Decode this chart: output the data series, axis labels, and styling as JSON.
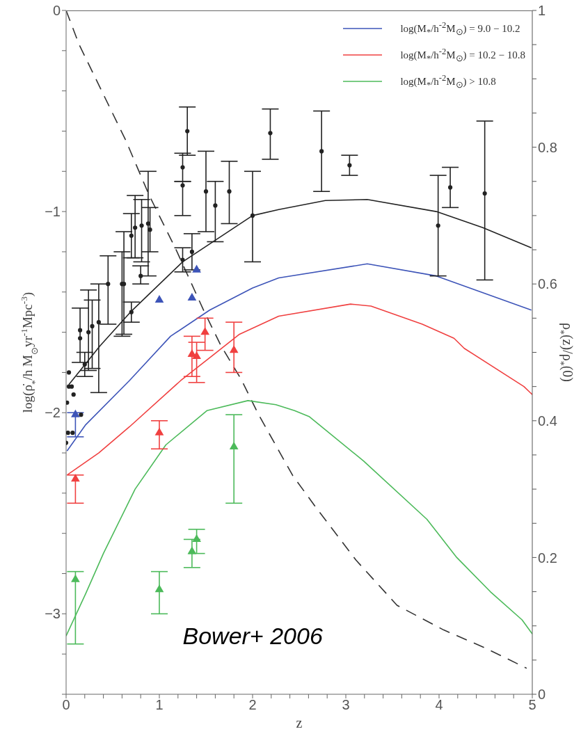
{
  "chart_data": {
    "type": "line",
    "xlabel": "z",
    "ylabel": "log(ρ̇$_{*}$/h M$_{⊙}$yr$^{-1}$Mpc$^{-3}$)",
    "y2label": "ρ$_{*}$(z)/ρ$_{*}$(0)",
    "annotations": [
      "Bower+ 2006"
    ],
    "xlim": [
      0,
      5
    ],
    "xticks": [
      0,
      {
        "value": 0.2,
        "label": null
      },
      {
        "value": 0.4,
        "label": null
      },
      {
        "value": 0.6,
        "label": null
      },
      {
        "value": 0.8,
        "label": null
      },
      1,
      {
        "value": 1.2,
        "label": null
      },
      {
        "value": 1.4,
        "label": null
      },
      {
        "value": 1.6,
        "label": null
      },
      {
        "value": 1.8,
        "label": null
      },
      2,
      {
        "value": 2.2,
        "label": null
      },
      {
        "value": 2.4,
        "label": null
      },
      {
        "value": 2.6,
        "label": null
      },
      {
        "value": 2.8,
        "label": null
      },
      3,
      {
        "value": 3.2,
        "label": null
      },
      {
        "value": 3.4,
        "label": null
      },
      {
        "value": 3.6,
        "label": null
      },
      {
        "value": 3.8,
        "label": null
      },
      4,
      {
        "value": 4.2,
        "label": null
      },
      {
        "value": 4.4,
        "label": null
      },
      {
        "value": 4.6,
        "label": null
      },
      {
        "value": 4.8,
        "label": null
      },
      5
    ],
    "ylim": [
      -3.4,
      0
    ],
    "yticks": [
      {
        "value": -3.4,
        "label": null
      },
      {
        "value": -3.2,
        "label": null
      },
      {
        "value": -3,
        "label": "−3"
      },
      {
        "value": -2.8,
        "label": null
      },
      {
        "value": -2.6,
        "label": null
      },
      {
        "value": -2.4,
        "label": null
      },
      {
        "value": -2.2,
        "label": null
      },
      {
        "value": -2,
        "label": "−2"
      },
      {
        "value": -1.8,
        "label": null
      },
      {
        "value": -1.6,
        "label": null
      },
      {
        "value": -1.4,
        "label": null
      },
      {
        "value": -1.2,
        "label": null
      },
      {
        "value": -1,
        "label": "−1"
      },
      {
        "value": -0.8,
        "label": null
      },
      {
        "value": -0.6,
        "label": null
      },
      {
        "value": -0.4,
        "label": null
      },
      {
        "value": -0.2,
        "label": null
      },
      0
    ],
    "y2lim": [
      0,
      1
    ],
    "y2ticks": [
      0,
      {
        "value": 0.05,
        "label": null
      },
      {
        "value": 0.1,
        "label": null
      },
      {
        "value": 0.15,
        "label": null
      },
      0.2,
      {
        "value": 0.25,
        "label": null
      },
      {
        "value": 0.3,
        "label": null
      },
      {
        "value": 0.35,
        "label": null
      },
      0.4,
      {
        "value": 0.45,
        "label": null
      },
      {
        "value": 0.5,
        "label": null
      },
      {
        "value": 0.55,
        "label": null
      },
      0.6,
      {
        "value": 0.65,
        "label": null
      },
      {
        "value": 0.7,
        "label": null
      },
      {
        "value": 0.75,
        "label": null
      },
      0.8,
      {
        "value": 0.85,
        "label": null
      },
      {
        "value": 0.9,
        "label": null
      },
      {
        "value": 0.95,
        "label": null
      },
      1
    ],
    "legend": "top right",
    "series": [
      {
        "color": "#333333",
        "line_style": "dashed",
        "axis": "y2",
        "x": [
          0,
          0.14,
          0.39,
          0.64,
          0.89,
          1.18,
          1.48,
          1.66,
          1.88,
          2.06,
          2.43,
          2.67,
          3.11,
          3.55,
          4.05,
          4.49,
          4.94
        ],
        "values": [
          1,
          0.95,
          0.88,
          0.81,
          0.73,
          0.65,
          0.56,
          0.51,
          0.46,
          0.41,
          0.32,
          0.275,
          0.196,
          0.13,
          0.094,
          0.068,
          0.038
        ]
      },
      {
        "color": "#222222",
        "x": [
          0.03,
          0.36,
          0.69,
          1.25,
          2.0,
          2.28,
          2.78,
          3.23,
          3.97,
          4.47,
          4.99
        ],
        "values": [
          -1.86,
          -1.67,
          -1.5,
          -1.25,
          -1.02,
          -0.99,
          -0.945,
          -0.94,
          -1.0,
          -1.08,
          -1.18
        ]
      },
      {
        "name": "log(M$_{*}$/h$^{-2}$M$_{⊙}$) = 9.0 − 10.2",
        "color": "#3d54b8",
        "x": [
          0.01,
          0.21,
          0.68,
          1.12,
          1.54,
          2.0,
          2.28,
          3.23,
          3.97,
          4.99
        ],
        "values": [
          -2.19,
          -2.06,
          -1.84,
          -1.62,
          -1.49,
          -1.38,
          -1.33,
          -1.26,
          -1.32,
          -1.49
        ]
      },
      {
        "name": "log(M$_{*}$/h$^{-2}$M$_{⊙}$) = 10.2 − 10.8",
        "color": "#f04040",
        "x": [
          0.01,
          0.35,
          0.68,
          1.23,
          1.86,
          2.28,
          3.05,
          3.27,
          3.82,
          4.16,
          4.27,
          4.91,
          5.0
        ],
        "values": [
          -2.31,
          -2.2,
          -2.07,
          -1.84,
          -1.61,
          -1.52,
          -1.46,
          -1.47,
          -1.56,
          -1.63,
          -1.68,
          -1.87,
          -1.91
        ]
      },
      {
        "name": "log(M$_{*}$/h$^{-2}$M$_{⊙}$) > 10.8",
        "color": "#4cba5a",
        "x": [
          0,
          0.21,
          0.4,
          0.74,
          1.07,
          1.51,
          1.95,
          2.25,
          2.45,
          2.61,
          3.19,
          3.87,
          4.19,
          4.55,
          4.89,
          5.0
        ],
        "values": [
          -3.11,
          -2.9,
          -2.7,
          -2.38,
          -2.16,
          -1.99,
          -1.94,
          -1.96,
          -1.99,
          -2.02,
          -2.24,
          -2.53,
          -2.72,
          -2.89,
          -3.03,
          -3.1
        ]
      },
      {
        "type": "scatter",
        "marker": "circle",
        "color": "#222222",
        "x": [
          0,
          0.01,
          0.02,
          0.03,
          0.03,
          0.06,
          0.07,
          0.08,
          0.16,
          0.15,
          0.15,
          0.2,
          0.24,
          0.28,
          0.35,
          0.45,
          0.6,
          0.62,
          0.7,
          0.7,
          0.74,
          0.8,
          0.81,
          0.88,
          0.9,
          1.25,
          1.25,
          1.25,
          1.3,
          1.35,
          1.5,
          1.6,
          1.75,
          2.0,
          2.19,
          2.74,
          3.04,
          3.99,
          4.12,
          4.49
        ],
        "values": [
          -2.15,
          -1.95,
          -2.1,
          -1.8,
          -1.87,
          -1.87,
          -2.1,
          -1.91,
          -2.01,
          -1.59,
          -1.63,
          -1.76,
          -1.6,
          -1.57,
          -1.55,
          -1.36,
          -1.36,
          -1.36,
          -1.5,
          -1.12,
          -1.08,
          -1.32,
          -1.07,
          -1.06,
          -1.09,
          -1.24,
          -0.87,
          -0.78,
          -0.6,
          -1.2,
          -0.9,
          -0.97,
          -0.9,
          -1.02,
          -0.61,
          -0.7,
          -0.77,
          -1.07,
          -0.88,
          -0.91
        ],
        "errors": [
          null,
          null,
          null,
          null,
          null,
          null,
          null,
          null,
          null,
          [
            -1.75,
            -1.48
          ],
          null,
          [
            -1.82,
            -1.7
          ],
          [
            -1.79,
            -1.39
          ],
          [
            -1.78,
            -1.44
          ],
          [
            -1.9,
            -1.36
          ],
          [
            -1.56,
            -1.22
          ],
          [
            -1.62,
            -1.2
          ],
          [
            -1.61,
            -1.1
          ],
          [
            -1.55,
            -1.45
          ],
          [
            -1.23,
            -1.01
          ],
          [
            -1.23,
            -0.92
          ],
          [
            -1.36,
            -1.27
          ],
          [
            -1.25,
            -0.94
          ],
          [
            -1.32,
            -0.8
          ],
          [
            -1.2,
            -0.98
          ],
          [
            -1.3,
            -1.18
          ],
          [
            -1.02,
            -0.85
          ],
          [
            -0.85,
            -0.71
          ],
          [
            -0.72,
            -0.48
          ],
          [
            -1.29,
            -1.11
          ],
          [
            -1.1,
            -0.7
          ],
          [
            -1.15,
            -0.85
          ],
          [
            -1.06,
            -0.75
          ],
          [
            -1.25,
            -0.8
          ],
          [
            -0.74,
            -0.49
          ],
          [
            -0.9,
            -0.5
          ],
          [
            -0.82,
            -0.72
          ],
          [
            -1.32,
            -0.82
          ],
          [
            -0.98,
            -0.78
          ],
          [
            -1.34,
            -0.55
          ]
        ]
      },
      {
        "type": "scatter",
        "marker": "triangle",
        "color": "#3d54b8",
        "x": [
          0.1,
          1.0,
          1.35,
          1.4
        ],
        "values": [
          -2.01,
          -1.44,
          -1.43,
          -1.29
        ],
        "errors": [
          [
            -2.12,
            -2.0
          ],
          null,
          null,
          null
        ]
      },
      {
        "type": "scatter",
        "marker": "triangle",
        "color": "#f04040",
        "x": [
          0.1,
          1.0,
          1.35,
          1.4,
          1.49,
          1.8
        ],
        "values": [
          -2.33,
          -2.1,
          -1.71,
          -1.72,
          -1.6,
          -1.69
        ],
        "errors": [
          [
            -2.45,
            -2.31
          ],
          [
            -2.18,
            -2.04
          ],
          [
            -1.82,
            -1.62
          ],
          [
            -1.85,
            -1.65
          ],
          [
            -1.69,
            -1.53
          ],
          [
            -1.8,
            -1.55
          ]
        ]
      },
      {
        "type": "scatter",
        "marker": "triangle",
        "color": "#4cba5a",
        "x": [
          0.1,
          1.0,
          1.35,
          1.4,
          1.8
        ],
        "values": [
          -2.83,
          -2.88,
          -2.69,
          -2.63,
          -2.17
        ],
        "errors": [
          [
            -3.15,
            -2.79
          ],
          [
            -3.0,
            -2.79
          ],
          [
            -2.77,
            -2.63
          ],
          [
            -2.7,
            -2.58
          ],
          [
            -2.45,
            -2.01
          ]
        ]
      }
    ]
  }
}
